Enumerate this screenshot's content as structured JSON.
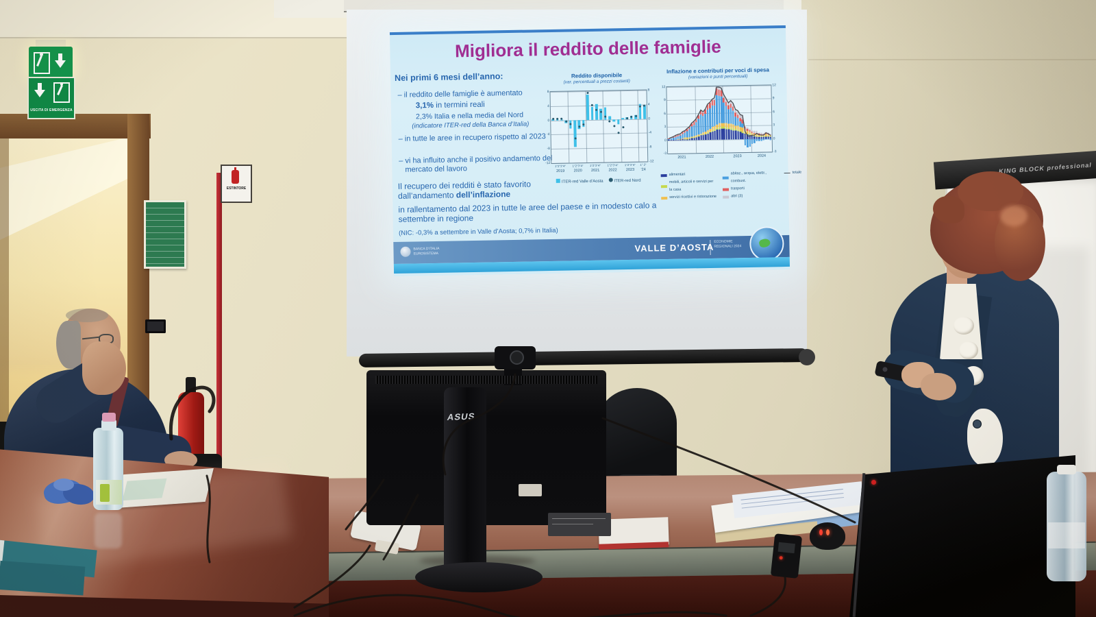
{
  "room": {
    "exit_sign_label": "USCITA DI EMERGENZA",
    "extinguisher_label": "ESTINTORE",
    "flipchart_brand": "KING BLOCK professional",
    "monitor_brand": "ASUS"
  },
  "slide": {
    "title": "Migliora il reddito delle famiglie",
    "intro": "Nei primi 6 mesi dell’anno:",
    "b1": "– il reddito delle famiglie è aumentato",
    "b1_stat1_strong": "3,1%",
    "b1_stat1_rest": " in termini reali",
    "b1_stat2": "2,3% Italia e nella media del Nord",
    "b1_note": "(indicatore ITER-red della Banca d’Italia)",
    "b2": "– in tutte le aree in recupero rispetto al 2023",
    "b3": "– vi ha influito anche il positivo andamento del mercato del lavoro",
    "p1a": "Il recupero dei redditi è stato favorito dall’andamento ",
    "p1b": "dell’inflazione",
    "p2": "in rallentamento dal 2023 in tutte le aree del paese e in modesto calo a settembre in regione",
    "p3": "(NIC: -0,3% a settembre in Valle d’Aosta; 0,7% in Italia)",
    "footer": {
      "bank": "BANCA D’ITALIA",
      "bank_sub": "EUROSISTEMA",
      "region": "VALLE D’AOSTA",
      "series": "ECONOMIE REGIONALI 2024"
    }
  },
  "chart_data": [
    {
      "type": "bar",
      "title": "Reddito disponibile",
      "subtitle": "(var. percentuali a prezzi costanti)",
      "ylim": [
        -12,
        8
      ],
      "yticks": [
        8,
        4,
        0,
        -4,
        -8,
        -12
      ],
      "grid": true,
      "years": [
        {
          "label": "2019",
          "q": "1°2°3°4°",
          "quarters": 4
        },
        {
          "label": "2020",
          "q": "1°2°3°4°",
          "quarters": 4
        },
        {
          "label": "2021",
          "q": "1°2°3°4°",
          "quarters": 4
        },
        {
          "label": "2022",
          "q": "1°2°3°4°",
          "quarters": 4
        },
        {
          "label": "2023",
          "q": "1°2°3°4°",
          "quarters": 4
        },
        {
          "label": "’24",
          "q": "1° 2°",
          "quarters": 2
        }
      ],
      "series": [
        {
          "name": "ITER-red Valle d’Aosta",
          "type": "bar",
          "color": "#3fc0e8",
          "values": [
            0.3,
            0.3,
            0.2,
            -0.8,
            -2.4,
            -7.6,
            -2.6,
            -2.1,
            7.0,
            3.6,
            4.4,
            3.0,
            3.3,
            0.8,
            -0.6,
            -1.5,
            0.4,
            0.5,
            0.8,
            1.0,
            4.2,
            3.8
          ]
        },
        {
          "name": "ITER-red Nord",
          "type": "point",
          "color": "#2a5b70",
          "values": [
            0.5,
            0.4,
            0.4,
            -0.3,
            -1.2,
            -5.2,
            -1.8,
            -1.4,
            7.6,
            4.0,
            2.8,
            2.2,
            0.8,
            -0.6,
            -1.9,
            -3.9,
            -2.3,
            0.3,
            0.6,
            0.8,
            3.4,
            3.6
          ]
        }
      ]
    },
    {
      "type": "stacked-bar",
      "title": "Inflazione e contributi per voci di spesa",
      "subtitle": "(variazioni e punti percentuali)",
      "ylim": [
        -3,
        12
      ],
      "yticks": [
        12,
        9,
        6,
        3,
        0,
        -3
      ],
      "grid": true,
      "x_years": [
        {
          "label": "2021",
          "months": 12
        },
        {
          "label": "2022",
          "months": 12
        },
        {
          "label": "2023",
          "months": 12
        },
        {
          "label": "2024",
          "months": 9
        }
      ],
      "series": [
        {
          "name": "alimentari",
          "color": "#2b3f9e",
          "values": [
            0.1,
            0.1,
            0.1,
            0.1,
            0.1,
            0.2,
            0.2,
            0.2,
            0.2,
            0.3,
            0.4,
            0.5,
            0.6,
            0.8,
            1.0,
            1.1,
            1.2,
            1.4,
            1.6,
            1.8,
            2.0,
            2.2,
            2.3,
            2.4,
            2.4,
            2.3,
            2.2,
            2.1,
            2.0,
            1.9,
            1.8,
            1.6,
            1.4,
            1.2,
            1.0,
            0.9,
            0.7,
            0.6,
            0.5,
            0.4,
            0.4,
            0.4,
            0.5,
            0.5,
            0.4
          ]
        },
        {
          "name": "mobili, articoli e servizi per la casa",
          "color": "#c6d94e",
          "values": [
            0.0,
            0.0,
            0.0,
            0.0,
            0.0,
            0.0,
            0.0,
            0.1,
            0.1,
            0.1,
            0.1,
            0.1,
            0.1,
            0.1,
            0.1,
            0.1,
            0.2,
            0.2,
            0.2,
            0.3,
            0.3,
            0.4,
            0.4,
            0.4,
            0.4,
            0.4,
            0.4,
            0.4,
            0.4,
            0.3,
            0.3,
            0.3,
            0.3,
            0.2,
            0.2,
            0.2,
            0.1,
            0.1,
            0.1,
            0.1,
            0.1,
            0.1,
            0.1,
            0.1,
            0.1
          ]
        },
        {
          "name": "servizi ricettivi e ristorazione",
          "color": "#f0c050",
          "values": [
            0.0,
            0.0,
            0.0,
            0.0,
            0.1,
            0.1,
            0.2,
            0.2,
            0.2,
            0.2,
            0.2,
            0.2,
            0.3,
            0.3,
            0.3,
            0.4,
            0.4,
            0.5,
            0.6,
            0.7,
            0.7,
            0.8,
            0.9,
            0.9,
            0.9,
            0.9,
            0.9,
            1.0,
            1.0,
            0.9,
            0.9,
            0.8,
            0.8,
            0.7,
            0.6,
            0.5,
            0.5,
            0.4,
            0.4,
            0.3,
            0.3,
            0.3,
            0.4,
            0.3,
            0.2
          ]
        },
        {
          "name": "abitaz., acqua, elettr., combust.",
          "color": "#4a9fe0",
          "values": [
            0.2,
            0.3,
            0.4,
            0.6,
            0.7,
            0.7,
            1.0,
            1.1,
            1.5,
            1.8,
            2.4,
            2.6,
            3.0,
            3.5,
            4.2,
            3.7,
            4.0,
            4.6,
            4.6,
            4.8,
            4.6,
            6.6,
            6.3,
            6.0,
            4.6,
            3.9,
            3.2,
            3.5,
            3.1,
            2.0,
            1.7,
            1.2,
            1.0,
            -1.4,
            -1.9,
            -1.7,
            -1.2,
            -1.0,
            -0.6,
            -0.5,
            -0.5,
            -0.4,
            -0.2,
            -0.2,
            -0.3
          ]
        },
        {
          "name": "trasporti",
          "color": "#e06060",
          "values": [
            0.1,
            0.1,
            0.2,
            0.3,
            0.3,
            0.3,
            0.4,
            0.5,
            0.5,
            0.5,
            0.6,
            0.7,
            0.7,
            0.8,
            1.0,
            0.9,
            1.0,
            1.2,
            1.3,
            1.4,
            1.3,
            1.5,
            1.4,
            1.3,
            1.1,
            1.0,
            0.9,
            1.0,
            0.9,
            0.8,
            0.8,
            0.8,
            0.9,
            0.6,
            0.4,
            0.3,
            0.3,
            0.3,
            0.4,
            0.3,
            0.2,
            0.2,
            0.3,
            0.2,
            0.1
          ]
        },
        {
          "name": "altri (3)",
          "color": "#c9c9d4",
          "values": [
            0.0,
            0.1,
            0.1,
            0.1,
            0.1,
            0.1,
            0.1,
            0.1,
            0.1,
            0.1,
            0.1,
            0.1,
            0.1,
            0.2,
            0.1,
            0.1,
            0.1,
            0.1,
            0.1,
            0.1,
            0.5,
            0.3,
            0.5,
            0.6,
            0.7,
            0.7,
            0.6,
            0.7,
            0.7,
            0.8,
            0.9,
            0.8,
            0.9,
            0.4,
            0.4,
            0.4,
            0.4,
            0.4,
            0.4,
            0.3,
            0.3,
            0.2,
            0.2,
            0.2,
            0.2
          ]
        }
      ],
      "line": {
        "name": "totale",
        "color": "#4a4f55",
        "values": [
          0.4,
          0.6,
          0.8,
          1.1,
          1.3,
          1.4,
          1.9,
          2.1,
          2.6,
          3.0,
          3.8,
          4.2,
          4.8,
          5.7,
          6.7,
          6.3,
          6.9,
          8.0,
          8.4,
          9.1,
          9.4,
          11.8,
          11.8,
          11.6,
          10.1,
          9.2,
          8.2,
          8.7,
          8.1,
          6.7,
          6.4,
          5.5,
          5.3,
          1.7,
          0.7,
          0.6,
          0.8,
          0.8,
          1.2,
          0.9,
          0.8,
          0.8,
          1.3,
          1.1,
          0.7
        ]
      }
    }
  ],
  "colors": {
    "slide_title": "#a02e92",
    "slide_text_blue": "#2766ae",
    "slide_footer_blue": "#4f7fb4",
    "slide_cyan_strip": "#45b4e4",
    "bar_cyan": "#3fc0e8",
    "exit_green": "#0e8a46",
    "extinguisher_red": "#c8333a",
    "table_mahogany": "#73392a",
    "wall_beige": "#e6dfc4"
  }
}
